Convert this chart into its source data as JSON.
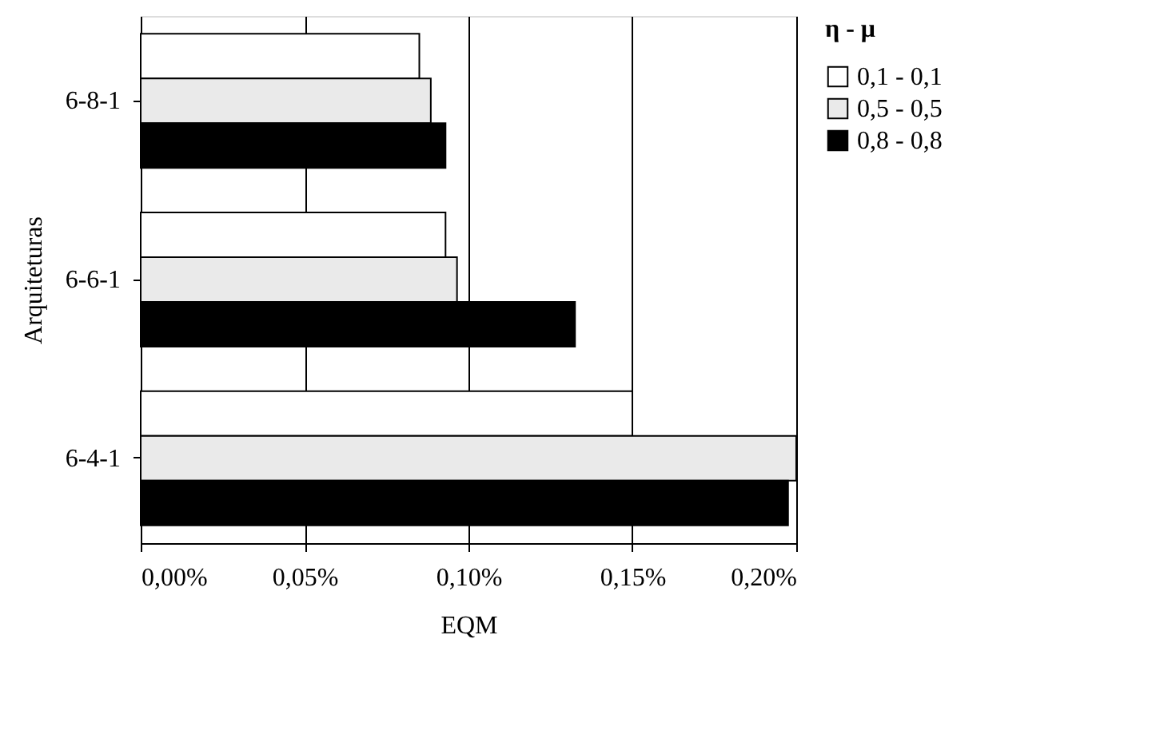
{
  "chart_data": {
    "type": "bar",
    "orientation": "horizontal",
    "xlabel": "EQM",
    "ylabel": "Arquiteturas",
    "legend_title": "η - μ",
    "legend": "right",
    "grid": "x",
    "categories": [
      "6-8-1",
      "6-6-1",
      "6-4-1"
    ],
    "xlim": [
      0,
      0.2
    ],
    "xticks": [
      {
        "value": 0,
        "label": "0,00%"
      },
      {
        "value": 0.05,
        "label": "0,05%"
      },
      {
        "value": 0.1,
        "label": "0,10%"
      },
      {
        "value": 0.15,
        "label": "0,15%"
      },
      {
        "value": 0.2,
        "label": "0,20%"
      }
    ],
    "series": [
      {
        "name": "0,1 - 0,1",
        "color": "#ffffff",
        "values": [
          0.085,
          0.093,
          0.15
        ]
      },
      {
        "name": "0,5 - 0,5",
        "color": "#eaeaea",
        "values": [
          0.0885,
          0.0965,
          0.2
        ]
      },
      {
        "name": "0,8 - 0,8",
        "color": "#000000",
        "values": [
          0.093,
          0.1325,
          0.1975
        ]
      }
    ]
  }
}
